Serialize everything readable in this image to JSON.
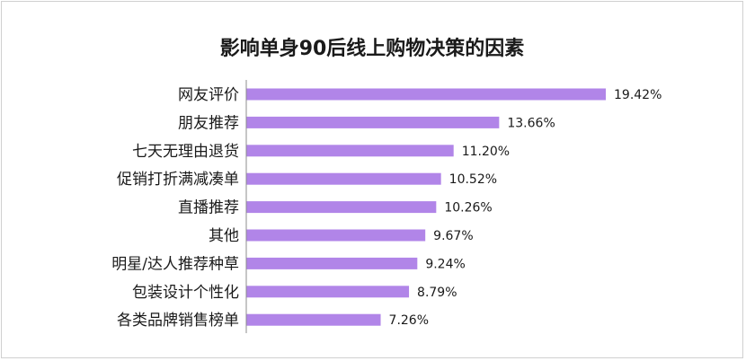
{
  "chart_data": {
    "type": "bar",
    "orientation": "horizontal",
    "title": "影响单身90后线上购物决策的因素",
    "categories": [
      "网友评价",
      "朋友推荐",
      "七天无理由退货",
      "促销打折满减凑单",
      "直播推荐",
      "其他",
      "明星/达人推荐种草",
      "包装设计个性化",
      "各类品牌销售榜单"
    ],
    "values": [
      19.42,
      13.66,
      11.2,
      10.52,
      10.26,
      9.67,
      9.24,
      8.79,
      7.26
    ],
    "value_labels": [
      "19.42%",
      "13.66%",
      "11.20%",
      "10.52%",
      "10.26%",
      "9.67%",
      "9.24%",
      "8.79%",
      "7.26%"
    ],
    "bar_color": "#b185e8",
    "axis_color": "#8c8c8c",
    "xlim": [
      0,
      20
    ],
    "grid": false,
    "legend": "none"
  }
}
